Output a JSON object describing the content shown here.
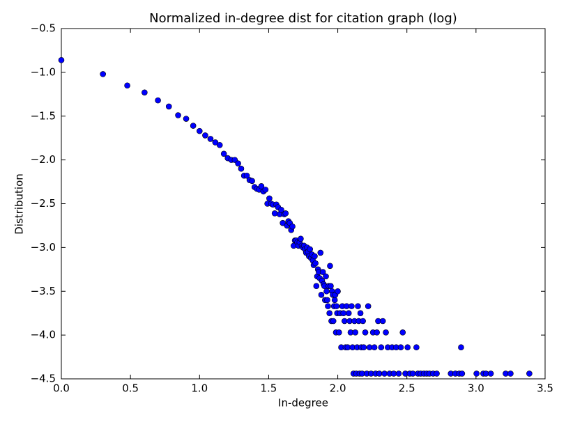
{
  "chart_data": {
    "type": "scatter",
    "title": "Normalized in-degree dist for citation graph (log)",
    "x_label": "In-degree",
    "y_label": "Distribution",
    "color": "#0000ff",
    "x": [
      0,
      0.301,
      0.477,
      0.602,
      0.699,
      0.778,
      0.845,
      0.903,
      0.954,
      1.0,
      1.041,
      1.079,
      1.114,
      1.146,
      1.176,
      1.204,
      1.23,
      1.255,
      1.279,
      1.301,
      1.322,
      1.342,
      1.362,
      1.38,
      1.398,
      1.415,
      1.431,
      1.447,
      1.462,
      1.477,
      1.491,
      1.505,
      1.519,
      1.531,
      1.544,
      1.556,
      1.568,
      1.58,
      1.591,
      1.602,
      1.613,
      1.623,
      1.633,
      1.643,
      1.653,
      1.663,
      1.672,
      1.681,
      1.69,
      1.699,
      1.708,
      1.716,
      1.724,
      1.732,
      1.74,
      1.748,
      1.756,
      1.763,
      1.771,
      1.778,
      1.785,
      1.792,
      1.799,
      1.806,
      1.813,
      1.82,
      1.826,
      1.833,
      1.839,
      1.845,
      1.851,
      1.857,
      1.863,
      1.869,
      1.875,
      1.881,
      1.886,
      1.892,
      1.898,
      1.903,
      1.908,
      1.914,
      1.919,
      1.924,
      1.929,
      1.934,
      1.94,
      1.944,
      1.949,
      1.954,
      1.959,
      1.964,
      1.968,
      1.973,
      1.978,
      1.982,
      1.987,
      1.991,
      1.996,
      2.0,
      2.009,
      2.017,
      2.025,
      2.033,
      2.041,
      2.049,
      2.057,
      2.064,
      2.072,
      2.079,
      2.086,
      2.093,
      2.1,
      2.107,
      2.114,
      2.121,
      2.127,
      2.134,
      2.14,
      2.146,
      2.152,
      2.158,
      2.164,
      2.17,
      2.176,
      2.182,
      2.188,
      2.199,
      2.21,
      2.22,
      2.23,
      2.241,
      2.255,
      2.265,
      2.274,
      2.283,
      2.292,
      2.301,
      2.314,
      2.326,
      2.338,
      2.348,
      2.362,
      2.375,
      2.393,
      2.405,
      2.423,
      2.441,
      2.456,
      2.47,
      2.489,
      2.505,
      2.521,
      2.543,
      2.569,
      2.58,
      2.6,
      2.623,
      2.643,
      2.663,
      2.69,
      2.716,
      2.818,
      2.851,
      2.879,
      2.892,
      2.899,
      3.004,
      3.053,
      3.072,
      3.107,
      3.215,
      3.25,
      3.386
    ],
    "values": [
      -0.86,
      -1.02,
      -1.15,
      -1.23,
      -1.32,
      -1.39,
      -1.49,
      -1.53,
      -1.61,
      -1.67,
      -1.72,
      -1.76,
      -1.8,
      -1.83,
      -1.93,
      -1.98,
      -2.0,
      -2.0,
      -2.04,
      -2.1,
      -2.18,
      -2.18,
      -2.23,
      -2.24,
      -2.31,
      -2.33,
      -2.34,
      -2.3,
      -2.36,
      -2.34,
      -2.5,
      -2.44,
      -2.5,
      -2.51,
      -2.61,
      -2.51,
      -2.54,
      -2.62,
      -2.57,
      -2.72,
      -2.62,
      -2.61,
      -2.75,
      -2.7,
      -2.72,
      -2.8,
      -2.76,
      -2.98,
      -2.92,
      -2.92,
      -2.94,
      -2.98,
      -2.94,
      -2.9,
      -2.98,
      -3.0,
      -2.98,
      -3.02,
      -3.06,
      -3.0,
      -3.05,
      -3.1,
      -3.02,
      -3.12,
      -3.08,
      -3.15,
      -3.2,
      -3.1,
      -3.18,
      -3.44,
      -3.33,
      -3.25,
      -3.28,
      -3.35,
      -3.06,
      -3.54,
      -3.38,
      -3.28,
      -3.42,
      -3.44,
      -3.6,
      -3.33,
      -3.5,
      -3.6,
      -3.67,
      -3.44,
      -3.75,
      -3.21,
      -3.44,
      -3.84,
      -3.5,
      -3.54,
      -3.84,
      -3.67,
      -3.6,
      -3.54,
      -3.97,
      -3.67,
      -3.75,
      -3.5,
      -3.97,
      -3.75,
      -4.14,
      -3.67,
      -3.75,
      -3.84,
      -4.14,
      -3.67,
      -4.14,
      -3.75,
      -3.84,
      -3.97,
      -3.67,
      -4.14,
      -4.44,
      -3.84,
      -3.97,
      -4.44,
      -4.14,
      -3.67,
      -3.84,
      -4.44,
      -3.75,
      -4.14,
      -4.44,
      -3.84,
      -4.14,
      -3.97,
      -4.44,
      -3.67,
      -4.14,
      -4.44,
      -3.97,
      -4.14,
      -4.44,
      -3.97,
      -3.84,
      -4.44,
      -4.14,
      -3.84,
      -4.44,
      -3.97,
      -4.14,
      -4.44,
      -4.14,
      -4.44,
      -4.14,
      -4.44,
      -4.14,
      -3.97,
      -4.44,
      -4.14,
      -4.44,
      -4.44,
      -4.14,
      -4.44,
      -4.44,
      -4.44,
      -4.44,
      -4.44,
      -4.44,
      -4.44,
      -4.44,
      -4.44,
      -4.44,
      -4.14,
      -4.44,
      -4.44,
      -4.44,
      -4.44,
      -4.44,
      -4.44,
      -4.44,
      -4.44
    ],
    "xlim": [
      0,
      3.5
    ],
    "xticks": [
      {
        "value": 0,
        "label": "0.0"
      },
      0.5,
      {
        "value": 1,
        "label": "1.0"
      },
      1.5,
      {
        "value": 2,
        "label": "2.0"
      },
      2.5,
      {
        "value": 3,
        "label": "3.0"
      },
      3.5
    ],
    "ylim": [
      -4.5,
      -0.5
    ],
    "yticks": [
      {
        "value": -4.5,
        "label": "−4.5"
      },
      {
        "value": -4,
        "label": "−4.0"
      },
      {
        "value": -3.5,
        "label": "−3.5"
      },
      {
        "value": -3,
        "label": "−3.0"
      },
      {
        "value": -2.5,
        "label": "−2.5"
      },
      {
        "value": -2,
        "label": "−2.0"
      },
      {
        "value": -1.5,
        "label": "−1.5"
      },
      {
        "value": -1,
        "label": "−1.0"
      },
      {
        "value": -0.5,
        "label": "−0.5"
      }
    ]
  }
}
